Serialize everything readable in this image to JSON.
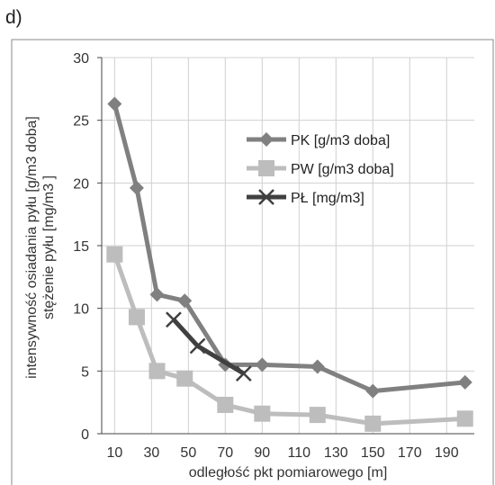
{
  "panel_label": "d)",
  "chart_data": {
    "type": "line",
    "xlabel": "odległość pkt pomiarowego [m]",
    "ylabel_lines": [
      "intensywność osiadania pyłu [g/m3 doba]",
      "stężenie pyłu  [mg/m3 ]"
    ],
    "xlim": [
      3,
      205
    ],
    "ylim": [
      0,
      30
    ],
    "x_ticks": [
      10,
      30,
      50,
      70,
      90,
      110,
      130,
      150,
      170,
      190
    ],
    "y_ticks": [
      0,
      5,
      10,
      15,
      20,
      25,
      30
    ],
    "grid": true,
    "legend_position": "inside-right",
    "series": [
      {
        "name": "PK [g/m3 doba]",
        "color": "#808080",
        "marker": "diamond",
        "points": [
          [
            10,
            26.3
          ],
          [
            22,
            19.6
          ],
          [
            33,
            11.1
          ],
          [
            48,
            10.6
          ],
          [
            70,
            5.5
          ],
          [
            90,
            5.5
          ],
          [
            120,
            5.35
          ],
          [
            150,
            3.4
          ],
          [
            200,
            4.1
          ]
        ]
      },
      {
        "name": "PW [g/m3 doba]",
        "color": "#bdbdbd",
        "marker": "square",
        "points": [
          [
            10,
            14.3
          ],
          [
            22,
            9.3
          ],
          [
            33,
            5.0
          ],
          [
            48,
            4.4
          ],
          [
            70,
            2.3
          ],
          [
            90,
            1.6
          ],
          [
            120,
            1.5
          ],
          [
            150,
            0.8
          ],
          [
            200,
            1.2
          ]
        ]
      },
      {
        "name": "PŁ [mg/m3]",
        "color": "#404040",
        "marker": "x",
        "points": [
          [
            42,
            9.1
          ],
          [
            55,
            7.0
          ],
          [
            80,
            4.8
          ]
        ]
      }
    ]
  }
}
